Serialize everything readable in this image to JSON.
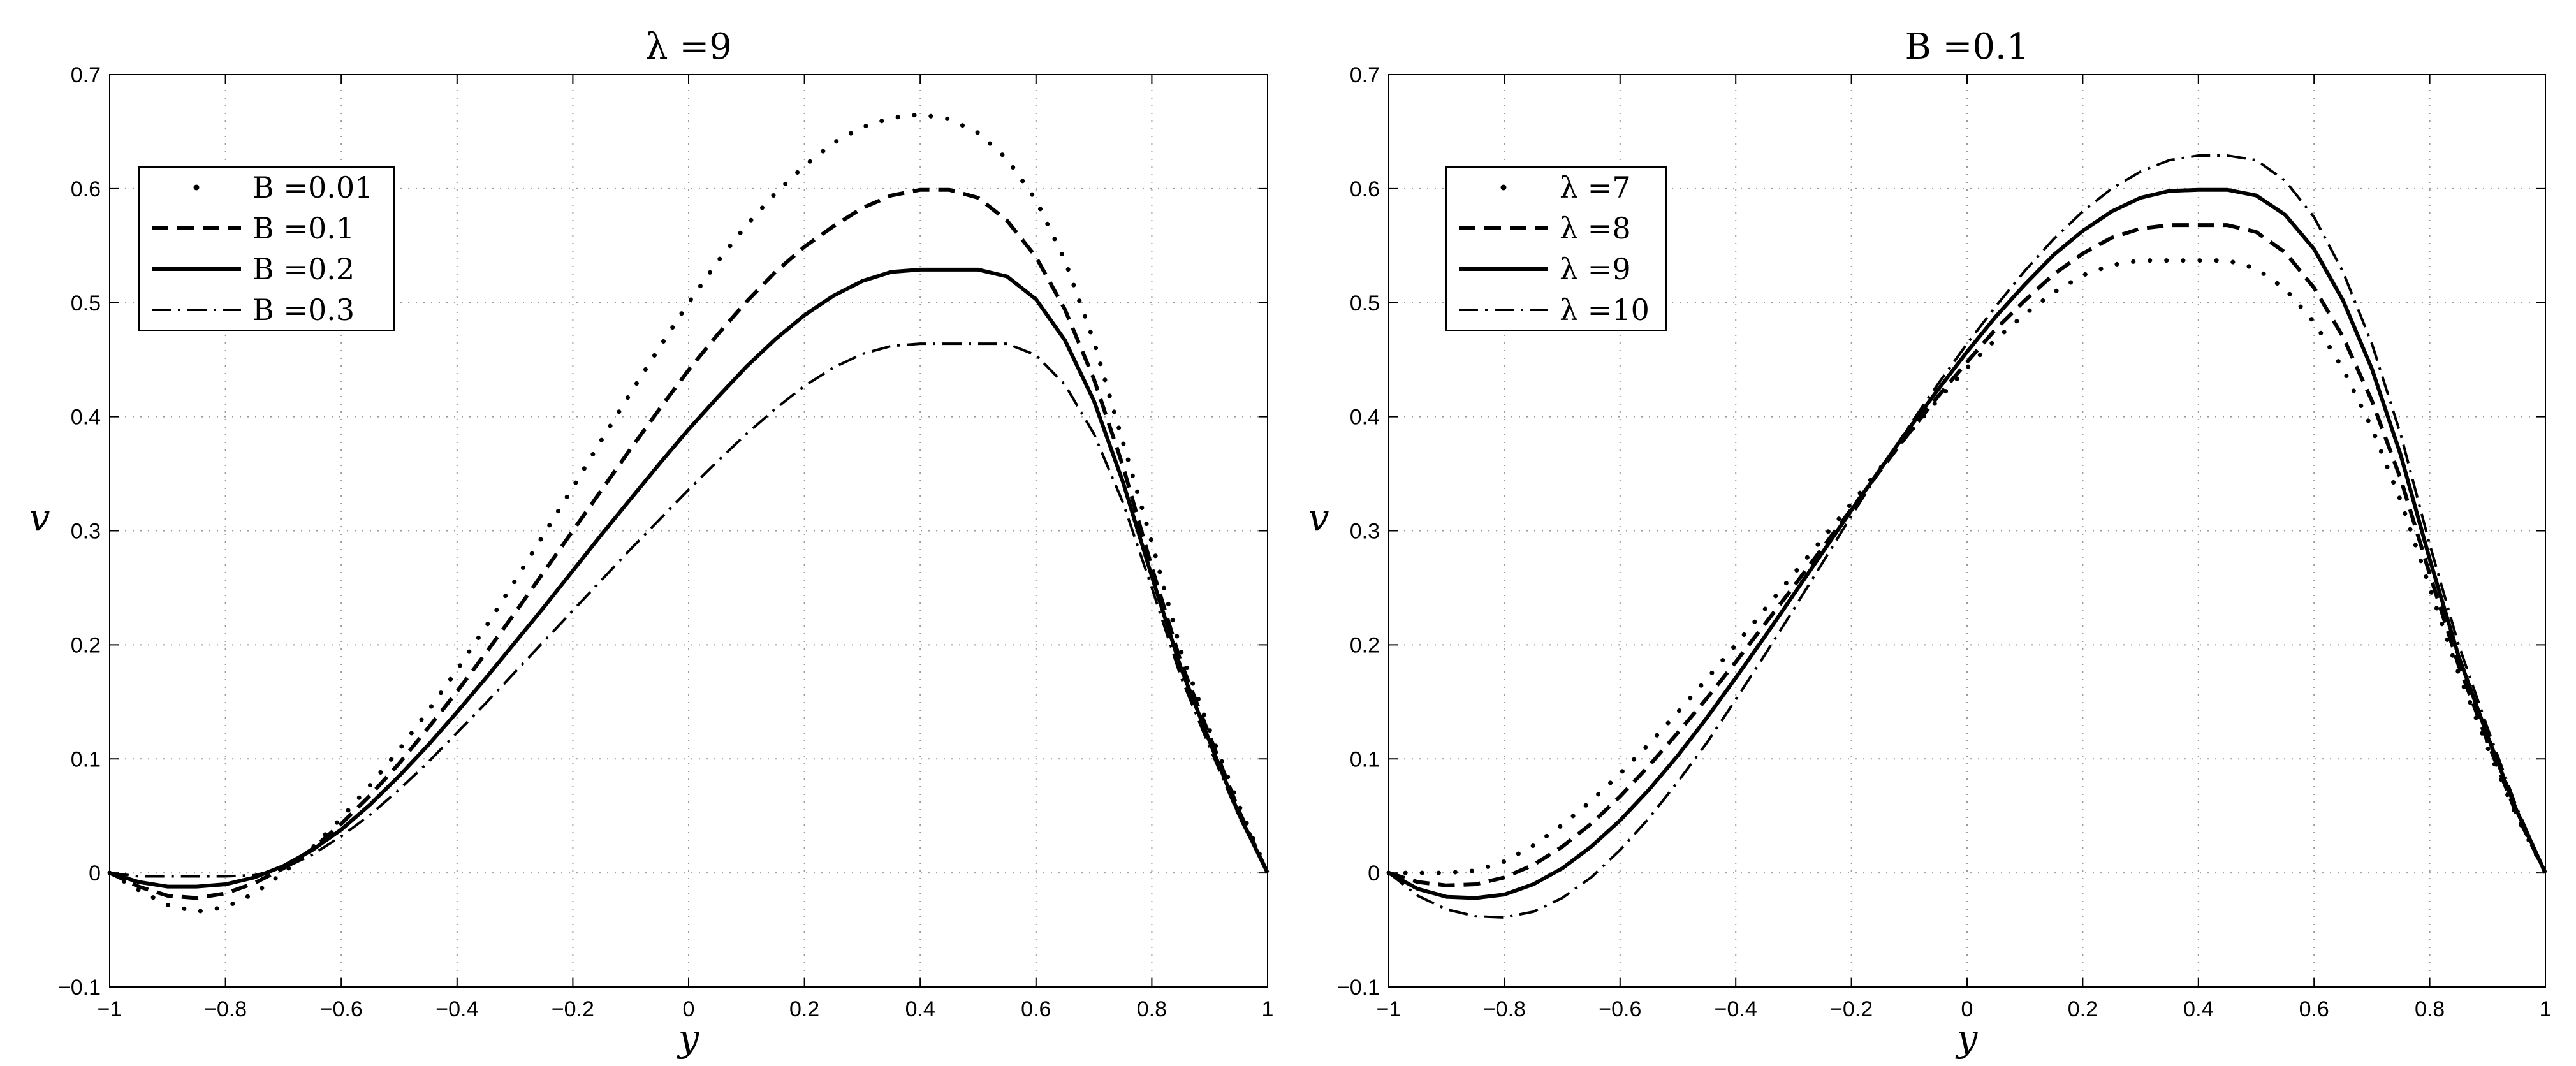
{
  "chart_data": [
    {
      "type": "line",
      "title": "λ =9",
      "xlabel": "y",
      "ylabel": "v",
      "xlim": [
        -1,
        1
      ],
      "ylim": [
        -0.1,
        0.7
      ],
      "xticks": [
        "−1",
        "−0.8",
        "−0.6",
        "−0.4",
        "−0.2",
        "0",
        "0.2",
        "0.4",
        "0.6",
        "0.8",
        "1"
      ],
      "yticks": [
        "−0.1",
        "0",
        "0.1",
        "0.2",
        "0.3",
        "0.4",
        "0.5",
        "0.6",
        "0.7"
      ],
      "grid": true,
      "legend_position": "top-left",
      "series": [
        {
          "name": "B =0.01",
          "style": "dotted",
          "x": [
            -1,
            -0.95,
            -0.9,
            -0.85,
            -0.8,
            -0.75,
            -0.7,
            -0.65,
            -0.6,
            -0.55,
            -0.5,
            -0.45,
            -0.4,
            -0.35,
            -0.3,
            -0.25,
            -0.2,
            -0.15,
            -0.1,
            -0.05,
            0,
            0.05,
            0.1,
            0.15,
            0.2,
            0.25,
            0.3,
            0.35,
            0.4,
            0.45,
            0.5,
            0.55,
            0.6,
            0.65,
            0.7,
            0.75,
            0.8,
            0.85,
            0.9,
            0.95,
            1
          ],
          "y": [
            0,
            -0.015,
            -0.028,
            -0.034,
            -0.03,
            -0.018,
            0.0,
            0.022,
            0.048,
            0.077,
            0.108,
            0.142,
            0.178,
            0.216,
            0.256,
            0.297,
            0.338,
            0.38,
            0.421,
            0.461,
            0.5,
            0.536,
            0.568,
            0.596,
            0.62,
            0.64,
            0.654,
            0.662,
            0.665,
            0.661,
            0.649,
            0.626,
            0.59,
            0.537,
            0.466,
            0.378,
            0.29,
            0.195,
            0.125,
            0.06,
            0
          ]
        },
        {
          "name": "B =0.1",
          "style": "dashed",
          "x": [
            -1,
            -0.95,
            -0.9,
            -0.85,
            -0.8,
            -0.75,
            -0.7,
            -0.65,
            -0.6,
            -0.55,
            -0.5,
            -0.45,
            -0.4,
            -0.35,
            -0.3,
            -0.25,
            -0.2,
            -0.15,
            -0.1,
            -0.05,
            0,
            0.05,
            0.1,
            0.15,
            0.2,
            0.25,
            0.3,
            0.35,
            0.4,
            0.45,
            0.5,
            0.55,
            0.6,
            0.65,
            0.7,
            0.75,
            0.8,
            0.85,
            0.9,
            0.95,
            1
          ],
          "y": [
            0,
            -0.012,
            -0.02,
            -0.022,
            -0.018,
            -0.009,
            0.004,
            0.021,
            0.043,
            0.068,
            0.096,
            0.127,
            0.159,
            0.193,
            0.228,
            0.264,
            0.3,
            0.336,
            0.372,
            0.407,
            0.441,
            0.472,
            0.501,
            0.527,
            0.549,
            0.567,
            0.583,
            0.594,
            0.599,
            0.599,
            0.592,
            0.572,
            0.54,
            0.494,
            0.433,
            0.357,
            0.268,
            0.185,
            0.12,
            0.055,
            0
          ]
        },
        {
          "name": "B =0.2",
          "style": "solid",
          "x": [
            -1,
            -0.95,
            -0.9,
            -0.85,
            -0.8,
            -0.75,
            -0.7,
            -0.65,
            -0.6,
            -0.55,
            -0.5,
            -0.45,
            -0.4,
            -0.35,
            -0.3,
            -0.25,
            -0.2,
            -0.15,
            -0.1,
            -0.05,
            0,
            0.05,
            0.1,
            0.15,
            0.2,
            0.25,
            0.3,
            0.35,
            0.4,
            0.45,
            0.5,
            0.55,
            0.6,
            0.65,
            0.7,
            0.75,
            0.8,
            0.85,
            0.9,
            0.95,
            1
          ],
          "y": [
            0,
            -0.008,
            -0.012,
            -0.012,
            -0.01,
            -0.004,
            0.006,
            0.02,
            0.038,
            0.06,
            0.085,
            0.112,
            0.141,
            0.171,
            0.202,
            0.233,
            0.265,
            0.297,
            0.328,
            0.359,
            0.389,
            0.417,
            0.444,
            0.468,
            0.489,
            0.506,
            0.519,
            0.527,
            0.529,
            0.529,
            0.529,
            0.523,
            0.503,
            0.467,
            0.414,
            0.343,
            0.26,
            0.18,
            0.115,
            0.052,
            0
          ]
        },
        {
          "name": "B =0.3",
          "style": "dash-dot",
          "x": [
            -1,
            -0.95,
            -0.9,
            -0.85,
            -0.8,
            -0.75,
            -0.7,
            -0.65,
            -0.6,
            -0.55,
            -0.5,
            -0.45,
            -0.4,
            -0.35,
            -0.3,
            -0.25,
            -0.2,
            -0.15,
            -0.1,
            -0.05,
            0,
            0.05,
            0.1,
            0.15,
            0.2,
            0.25,
            0.3,
            0.35,
            0.4,
            0.45,
            0.5,
            0.55,
            0.6,
            0.65,
            0.7,
            0.75,
            0.8,
            0.85,
            0.9,
            0.95,
            1
          ],
          "y": [
            0,
            -0.003,
            -0.003,
            -0.003,
            -0.003,
            -0.002,
            0.004,
            0.016,
            0.032,
            0.051,
            0.073,
            0.097,
            0.123,
            0.149,
            0.176,
            0.203,
            0.23,
            0.257,
            0.284,
            0.31,
            0.336,
            0.361,
            0.385,
            0.407,
            0.427,
            0.443,
            0.455,
            0.462,
            0.464,
            0.464,
            0.464,
            0.464,
            0.454,
            0.428,
            0.385,
            0.325,
            0.25,
            0.172,
            0.11,
            0.05,
            0
          ]
        }
      ]
    },
    {
      "type": "line",
      "title": "B =0.1",
      "xlabel": "y",
      "ylabel": "v",
      "xlim": [
        -1,
        1
      ],
      "ylim": [
        -0.1,
        0.7
      ],
      "xticks": [
        "−1",
        "−0.8",
        "−0.6",
        "−0.4",
        "−0.2",
        "0",
        "0.2",
        "0.4",
        "0.6",
        "0.8",
        "1"
      ],
      "yticks": [
        "−0.1",
        "0",
        "0.1",
        "0.2",
        "0.3",
        "0.4",
        "0.5",
        "0.6",
        "0.7"
      ],
      "grid": true,
      "legend_position": "top-left",
      "series": [
        {
          "name": "λ =7",
          "style": "dotted",
          "x": [
            -1,
            -0.95,
            -0.9,
            -0.85,
            -0.8,
            -0.75,
            -0.7,
            -0.65,
            -0.6,
            -0.55,
            -0.5,
            -0.45,
            -0.4,
            -0.35,
            -0.3,
            -0.25,
            -0.2,
            -0.15,
            -0.1,
            -0.05,
            0,
            0.05,
            0.1,
            0.15,
            0.2,
            0.25,
            0.3,
            0.35,
            0.4,
            0.45,
            0.5,
            0.55,
            0.6,
            0.65,
            0.7,
            0.75,
            0.8,
            0.85,
            0.9,
            0.95,
            1
          ],
          "y": [
            0,
            0,
            0,
            0.002,
            0.01,
            0.024,
            0.042,
            0.063,
            0.087,
            0.113,
            0.141,
            0.17,
            0.2,
            0.231,
            0.262,
            0.293,
            0.324,
            0.355,
            0.386,
            0.415,
            0.443,
            0.468,
            0.49,
            0.509,
            0.524,
            0.533,
            0.537,
            0.537,
            0.537,
            0.537,
            0.53,
            0.512,
            0.483,
            0.442,
            0.39,
            0.326,
            0.25,
            0.175,
            0.11,
            0.05,
            0
          ]
        },
        {
          "name": "λ =8",
          "style": "dashed",
          "x": [
            -1,
            -0.95,
            -0.9,
            -0.85,
            -0.8,
            -0.75,
            -0.7,
            -0.65,
            -0.6,
            -0.55,
            -0.5,
            -0.45,
            -0.4,
            -0.35,
            -0.3,
            -0.25,
            -0.2,
            -0.15,
            -0.1,
            -0.05,
            0,
            0.05,
            0.1,
            0.15,
            0.2,
            0.25,
            0.3,
            0.35,
            0.4,
            0.45,
            0.5,
            0.55,
            0.6,
            0.65,
            0.7,
            0.75,
            0.8,
            0.85,
            0.9,
            0.95,
            1
          ],
          "y": [
            0,
            -0.008,
            -0.011,
            -0.01,
            -0.004,
            0.007,
            0.023,
            0.043,
            0.067,
            0.094,
            0.123,
            0.153,
            0.185,
            0.218,
            0.251,
            0.285,
            0.319,
            0.353,
            0.386,
            0.418,
            0.448,
            0.477,
            0.502,
            0.525,
            0.543,
            0.557,
            0.565,
            0.568,
            0.568,
            0.568,
            0.562,
            0.544,
            0.513,
            0.47,
            0.414,
            0.345,
            0.262,
            0.182,
            0.115,
            0.052,
            0
          ]
        },
        {
          "name": "λ =9",
          "style": "solid",
          "x": [
            -1,
            -0.95,
            -0.9,
            -0.85,
            -0.8,
            -0.75,
            -0.7,
            -0.65,
            -0.6,
            -0.55,
            -0.5,
            -0.45,
            -0.4,
            -0.35,
            -0.3,
            -0.25,
            -0.2,
            -0.15,
            -0.1,
            -0.05,
            0,
            0.05,
            0.1,
            0.15,
            0.2,
            0.25,
            0.3,
            0.35,
            0.4,
            0.45,
            0.5,
            0.55,
            0.6,
            0.65,
            0.7,
            0.75,
            0.8,
            0.85,
            0.9,
            0.95,
            1
          ],
          "y": [
            0,
            -0.014,
            -0.021,
            -0.022,
            -0.019,
            -0.01,
            0.004,
            0.023,
            0.046,
            0.073,
            0.103,
            0.136,
            0.171,
            0.207,
            0.244,
            0.281,
            0.318,
            0.354,
            0.39,
            0.424,
            0.457,
            0.488,
            0.516,
            0.542,
            0.563,
            0.58,
            0.592,
            0.598,
            0.599,
            0.599,
            0.594,
            0.577,
            0.547,
            0.502,
            0.442,
            0.366,
            0.275,
            0.19,
            0.12,
            0.055,
            0
          ]
        },
        {
          "name": "λ =10",
          "style": "dash-dot",
          "x": [
            -1,
            -0.95,
            -0.9,
            -0.85,
            -0.8,
            -0.75,
            -0.7,
            -0.65,
            -0.6,
            -0.55,
            -0.5,
            -0.45,
            -0.4,
            -0.35,
            -0.3,
            -0.25,
            -0.2,
            -0.15,
            -0.1,
            -0.05,
            0,
            0.05,
            0.1,
            0.15,
            0.2,
            0.25,
            0.3,
            0.35,
            0.4,
            0.45,
            0.5,
            0.55,
            0.6,
            0.65,
            0.7,
            0.75,
            0.8,
            0.85,
            0.9,
            0.95,
            1
          ],
          "y": [
            0,
            -0.02,
            -0.032,
            -0.038,
            -0.039,
            -0.034,
            -0.022,
            -0.004,
            0.02,
            0.048,
            0.08,
            0.114,
            0.152,
            0.191,
            0.231,
            0.272,
            0.313,
            0.353,
            0.392,
            0.429,
            0.464,
            0.497,
            0.528,
            0.556,
            0.58,
            0.6,
            0.615,
            0.625,
            0.629,
            0.629,
            0.625,
            0.607,
            0.575,
            0.527,
            0.464,
            0.384,
            0.288,
            0.2,
            0.127,
            0.058,
            0
          ]
        }
      ]
    }
  ]
}
